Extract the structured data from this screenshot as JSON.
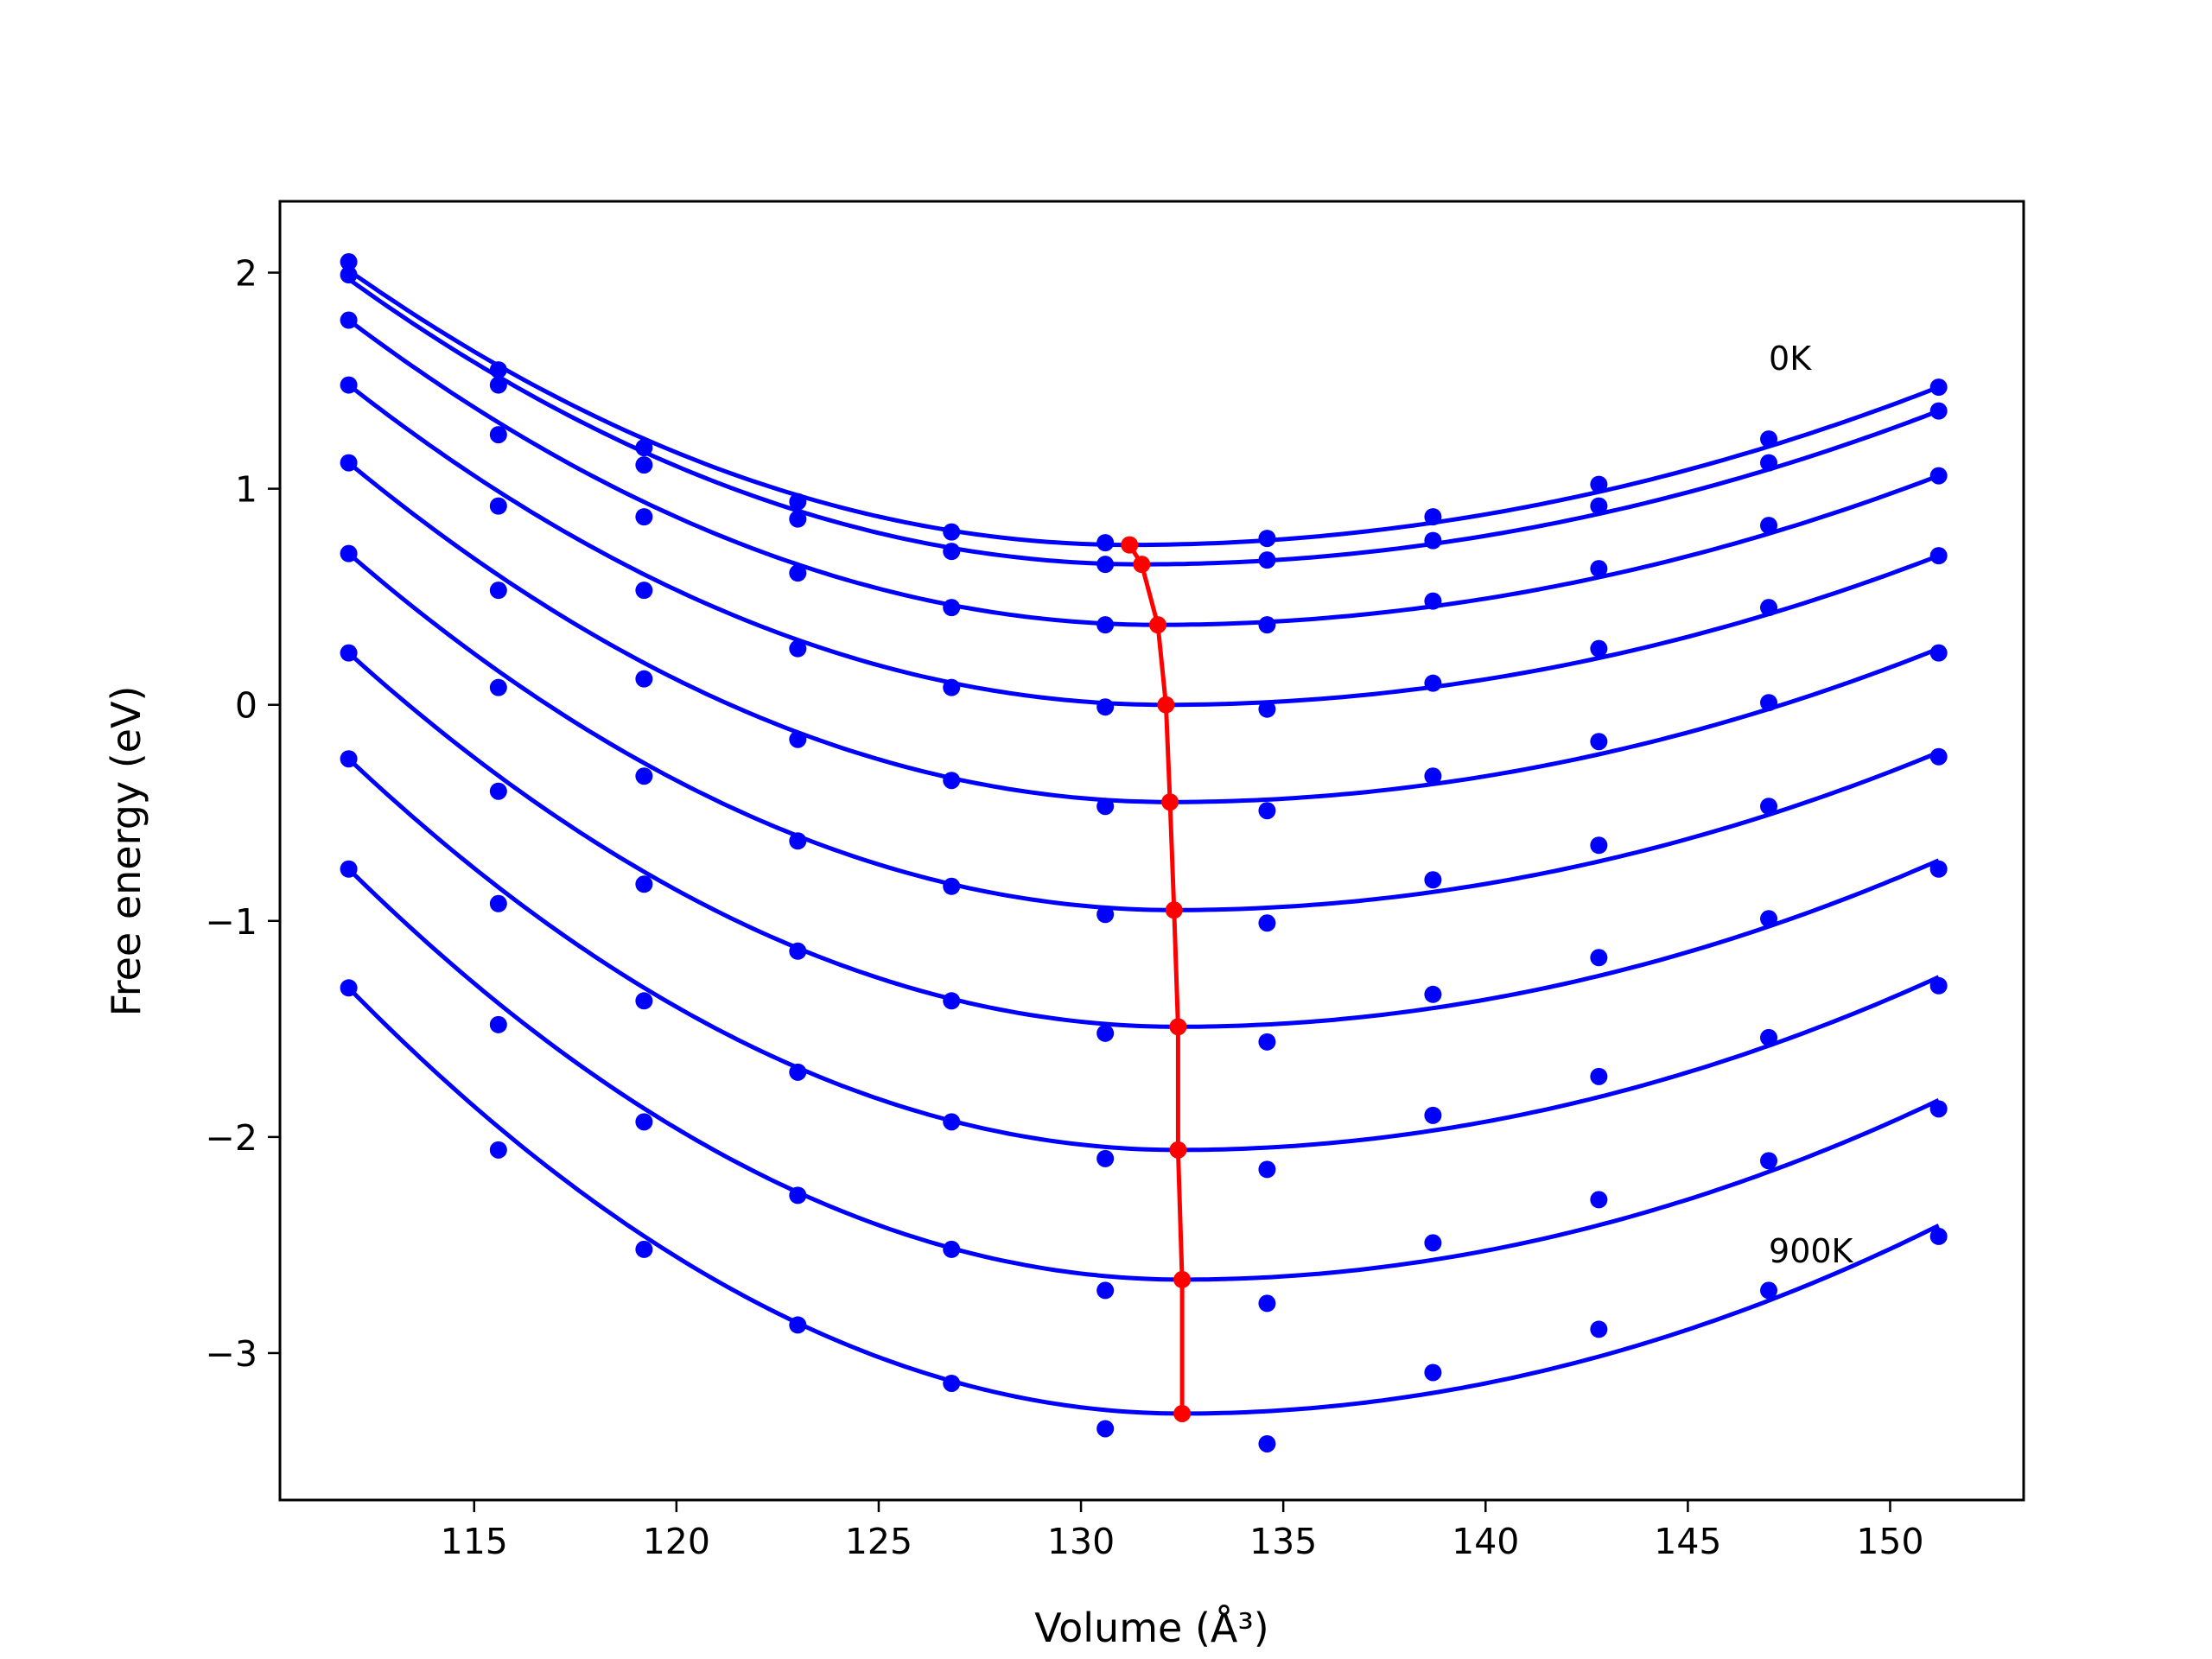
{
  "chart_data": {
    "type": "line",
    "title": "",
    "xlabel": "Volume (Å³)",
    "ylabel": "Free energy (eV)",
    "xlim": [
      110.2,
      153.3
    ],
    "ylim": [
      -3.68,
      2.33
    ],
    "x_ticks": [
      115,
      120,
      125,
      130,
      135,
      140,
      145,
      150
    ],
    "x_tick_labels": [
      "115",
      "120",
      "125",
      "130",
      "135",
      "140",
      "145",
      "150"
    ],
    "y_ticks": [
      -3,
      -2,
      -1,
      0,
      1,
      2
    ],
    "y_tick_labels": [
      "−3",
      "−2",
      "−1",
      "0",
      "1",
      "2"
    ],
    "grid": false,
    "colors": {
      "series": "#0000ff",
      "minimum": "#ff0000",
      "axes": "#000000"
    },
    "annotations": [
      {
        "text": "0K",
        "x": 147.0,
        "y": 1.55
      },
      {
        "text": "900K",
        "x": 147.0,
        "y": -2.58
      }
    ],
    "x": [
      111.9,
      115.6,
      119.2,
      123.0,
      126.8,
      130.6,
      134.6,
      138.7,
      142.8,
      147.0,
      151.2
    ],
    "series": [
      {
        "data_points": [
          2.05,
          1.55,
          1.19,
          0.94,
          0.8,
          0.75,
          0.77,
          0.87,
          1.02,
          1.23,
          1.47
        ],
        "fit": {
          "min_x": 131.2,
          "min_y": 0.74,
          "v_left": 2.01,
          "v_right": 1.47
        }
      },
      {
        "data_points": [
          1.99,
          1.48,
          1.11,
          0.86,
          0.71,
          0.65,
          0.67,
          0.76,
          0.92,
          1.12,
          1.36
        ],
        "fit": {
          "min_x": 131.5,
          "min_y": 0.65,
          "v_left": 1.97,
          "v_right": 1.36
        }
      },
      {
        "data_points": [
          1.78,
          1.25,
          0.87,
          0.61,
          0.45,
          0.37,
          0.37,
          0.48,
          0.63,
          0.83,
          1.06
        ],
        "fit": {
          "min_x": 131.9,
          "min_y": 0.37,
          "v_left": 1.78,
          "v_right": 1.06
        }
      },
      {
        "data_points": [
          1.48,
          0.92,
          0.53,
          0.26,
          0.08,
          -0.01,
          -0.02,
          0.1,
          0.26,
          0.45,
          0.69
        ],
        "fit": {
          "min_x": 132.1,
          "min_y": 0.0,
          "v_left": 1.48,
          "v_right": 0.69
        }
      },
      {
        "data_points": [
          1.12,
          0.53,
          0.12,
          -0.16,
          -0.35,
          -0.47,
          -0.49,
          -0.33,
          -0.17,
          0.01,
          0.24
        ],
        "fit": {
          "min_x": 132.2,
          "min_y": -0.45,
          "v_left": 1.12,
          "v_right": 0.26
        }
      },
      {
        "data_points": [
          0.7,
          0.08,
          -0.33,
          -0.63,
          -0.84,
          -0.97,
          -1.01,
          -0.81,
          -0.65,
          -0.47,
          -0.24
        ],
        "fit": {
          "min_x": 132.3,
          "min_y": -0.95,
          "v_left": 0.7,
          "v_right": -0.22
        }
      },
      {
        "data_points": [
          0.24,
          -0.4,
          -0.83,
          -1.14,
          -1.37,
          -1.52,
          -1.56,
          -1.34,
          -1.17,
          -0.99,
          -0.76
        ],
        "fit": {
          "min_x": 132.4,
          "min_y": -1.49,
          "v_left": 0.24,
          "v_right": -0.72
        }
      },
      {
        "data_points": [
          -0.25,
          -0.92,
          -1.37,
          -1.7,
          -1.93,
          -2.1,
          -2.15,
          -1.9,
          -1.72,
          -1.54,
          -1.3
        ],
        "fit": {
          "min_x": 132.4,
          "min_y": -2.06,
          "v_left": -0.25,
          "v_right": -1.26
        }
      },
      {
        "data_points": [
          -0.76,
          -1.48,
          -1.93,
          -2.27,
          -2.52,
          -2.71,
          -2.77,
          -2.49,
          -2.29,
          -2.11,
          -1.87
        ],
        "fit": {
          "min_x": 132.5,
          "min_y": -2.66,
          "v_left": -0.76,
          "v_right": -1.83
        }
      },
      {
        "data_points": [
          -1.31,
          -2.06,
          -2.52,
          -2.87,
          -3.14,
          -3.35,
          -3.42,
          -3.09,
          -2.89,
          -2.71,
          -2.46
        ],
        "fit": {
          "min_x": 132.5,
          "min_y": -3.28,
          "v_left": -1.31,
          "v_right": -2.41
        }
      }
    ],
    "minimum_curve": {
      "x": [
        131.2,
        131.5,
        131.9,
        132.1,
        132.2,
        132.3,
        132.4,
        132.4,
        132.5,
        132.5
      ],
      "y": [
        0.74,
        0.65,
        0.37,
        0.0,
        -0.45,
        -0.95,
        -1.49,
        -2.06,
        -2.66,
        -3.28
      ]
    }
  }
}
